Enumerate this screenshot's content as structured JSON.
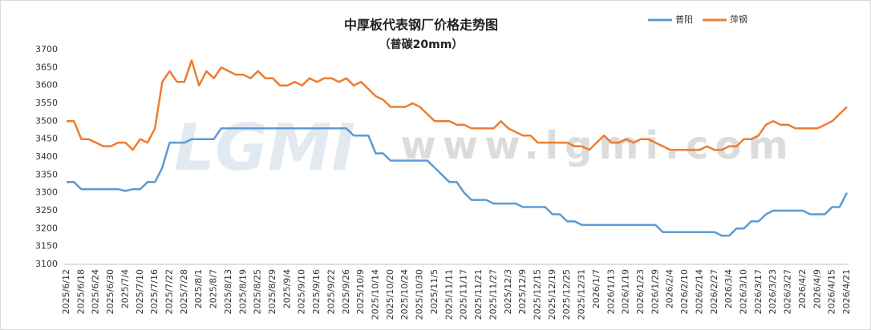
{
  "chart_data": {
    "type": "line",
    "title": "中厚板代表钢厂价格走势图",
    "subtitle": "（普碳20mm）",
    "watermark": "www.lgmi.com",
    "logo": "LGMI",
    "categories": [
      "2025/6/12",
      null,
      "2025/6/18",
      null,
      "2025/6/24",
      null,
      "2025/6/30",
      null,
      "2025/7/4",
      null,
      "2025/7/10",
      null,
      "2025/7/16",
      null,
      "2025/7/22",
      null,
      "2025/7/28",
      null,
      "2025/8/1",
      null,
      "2025/8/7",
      null,
      "2025/8/13",
      null,
      "2025/8/19",
      null,
      "2025/8/25",
      null,
      "2025/8/29",
      null,
      "2025/9/4",
      null,
      "2025/9/10",
      null,
      "2025/9/16",
      null,
      "2025/9/22",
      null,
      "2025/9/26",
      null,
      "2025/10/9",
      null,
      "2025/10/14",
      null,
      "2025/10/20",
      null,
      "2025/10/24",
      null,
      "2025/10/30",
      null,
      "2025/11/5",
      null,
      "2025/11/11",
      null,
      "2025/11/17",
      null,
      "2025/11/21",
      null,
      "2025/11/27",
      null,
      "2025/12/3",
      null,
      "2025/12/9",
      null,
      "2025/12/15",
      null,
      "2025/12/19",
      null,
      "2025/12/25",
      null,
      "2025/12/31",
      null,
      "2026/1/7",
      null,
      "2026/1/13",
      null,
      "2026/1/19",
      null,
      "2026/1/23",
      null,
      "2026/1/29",
      null,
      "2026/2/4",
      null,
      "2026/2/10",
      null,
      "2026/2/14",
      null,
      "2026/2/27",
      null,
      "2026/3/4",
      null,
      "2026/3/10",
      null,
      "2026/3/17",
      null,
      "2026/3/23",
      null,
      "2026/3/27",
      null,
      "2026/4/2",
      null,
      "2026/4/9",
      null,
      "2026/4/15",
      null,
      "2026/4/21"
    ],
    "series": [
      {
        "name": "普阳",
        "color": "#5b9bd5",
        "values": [
          3330,
          3330,
          3310,
          3310,
          3310,
          3310,
          3310,
          3310,
          3305,
          3310,
          3310,
          3330,
          3330,
          3370,
          3440,
          3440,
          3440,
          3450,
          3450,
          3450,
          3450,
          3480,
          3480,
          3480,
          3480,
          3480,
          3480,
          3480,
          3480,
          3480,
          3480,
          3480,
          3480,
          3480,
          3480,
          3480,
          3480,
          3480,
          3480,
          3460,
          3460,
          3460,
          3410,
          3410,
          3390,
          3390,
          3390,
          3390,
          3390,
          3390,
          3370,
          3350,
          3330,
          3330,
          3300,
          3280,
          3280,
          3280,
          3270,
          3270,
          3270,
          3270,
          3260,
          3260,
          3260,
          3260,
          3240,
          3240,
          3220,
          3220,
          3210,
          3210,
          3210,
          3210,
          3210,
          3210,
          3210,
          3210,
          3210,
          3210,
          3210,
          3190,
          3190,
          3190,
          3190,
          3190,
          3190,
          3190,
          3190,
          3180,
          3180,
          3200,
          3200,
          3220,
          3220,
          3240,
          3250,
          3250,
          3250,
          3250,
          3250,
          3240,
          3240,
          3240,
          3260,
          3260,
          3300
        ]
      },
      {
        "name": "萍钢",
        "color": "#ed7d31",
        "values": [
          3500,
          3500,
          3450,
          3450,
          3440,
          3430,
          3430,
          3440,
          3440,
          3420,
          3450,
          3440,
          3480,
          3610,
          3640,
          3610,
          3610,
          3670,
          3600,
          3640,
          3620,
          3650,
          3640,
          3630,
          3630,
          3620,
          3640,
          3620,
          3620,
          3600,
          3600,
          3610,
          3600,
          3620,
          3610,
          3620,
          3620,
          3610,
          3620,
          3600,
          3610,
          3590,
          3570,
          3560,
          3540,
          3540,
          3540,
          3550,
          3540,
          3520,
          3500,
          3500,
          3500,
          3490,
          3490,
          3480,
          3480,
          3480,
          3480,
          3500,
          3480,
          3470,
          3460,
          3460,
          3440,
          3440,
          3440,
          3440,
          3440,
          3430,
          3430,
          3420,
          3440,
          3460,
          3440,
          3440,
          3450,
          3440,
          3450,
          3450,
          3440,
          3430,
          3420,
          3420,
          3420,
          3420,
          3420,
          3430,
          3420,
          3420,
          3430,
          3430,
          3450,
          3450,
          3460,
          3490,
          3500,
          3490,
          3490,
          3480,
          3480,
          3480,
          3480,
          3490,
          3500,
          3520,
          3540
        ]
      }
    ],
    "ylim": [
      3100,
      3700
    ],
    "yticks": [
      3100,
      3150,
      3200,
      3250,
      3300,
      3350,
      3400,
      3450,
      3500,
      3550,
      3600,
      3650,
      3700
    ],
    "grid": false,
    "legend": "top-right"
  }
}
